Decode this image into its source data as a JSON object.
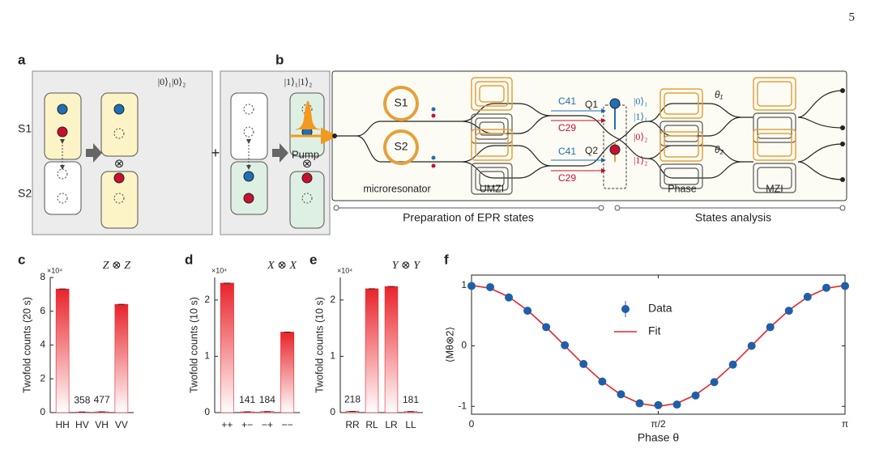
{
  "page_number": "5",
  "panel_a": {
    "label": "a",
    "kets": [
      "|0⟩₁|0⟩₂",
      "|1⟩₁|1⟩₂"
    ],
    "sources": [
      "S1",
      "S2"
    ],
    "plus": "+",
    "tensor": [
      "⊗",
      "⊗"
    ]
  },
  "panel_b": {
    "label": "b",
    "pump": "Pump",
    "sources": [
      "S1",
      "S2"
    ],
    "microresonator": "microresonator",
    "umzi": "UMZI",
    "modes": [
      "C41",
      "C29",
      "C41",
      "C29"
    ],
    "qubits": [
      "Q1",
      "Q2"
    ],
    "kets": [
      "|0⟩₁",
      "|1⟩₁",
      "|0⟩₂",
      "|1⟩₂"
    ],
    "thetas": [
      "θ₁",
      "θ₂"
    ],
    "phase": "Phase",
    "mzi": "MZI",
    "sections": [
      "Preparation of EPR states",
      "States analysis"
    ]
  },
  "chart_data": [
    {
      "label": "c",
      "type": "bar",
      "title": "Z ⊗ Z",
      "ylabel": "Twofold counts (20 s)",
      "y_multiplier": "×10⁴",
      "categories": [
        "HH",
        "HV",
        "VH",
        "VV"
      ],
      "values": [
        7.32,
        0.0358,
        0.0477,
        6.41
      ],
      "value_labels": [
        null,
        "358",
        "477",
        null
      ],
      "color": "#e8232a",
      "ylim": [
        0,
        8
      ],
      "yticks": [
        0,
        2,
        4,
        6,
        8
      ]
    },
    {
      "label": "d",
      "type": "bar",
      "title": "X ⊗ X",
      "ylabel": "Twofold counts (10 s)",
      "y_multiplier": "×10⁴",
      "categories": [
        "++",
        "+−",
        "−+",
        "−−"
      ],
      "values": [
        2.3,
        0.0141,
        0.0184,
        1.43
      ],
      "value_labels": [
        null,
        "141",
        "184",
        null
      ],
      "color": "#e8232a",
      "ylim": [
        0,
        2.4
      ],
      "yticks": [
        0,
        1,
        2
      ]
    },
    {
      "label": "e",
      "type": "bar",
      "title": "Y ⊗ Y",
      "ylabel": "Twofold counts (10 s)",
      "y_multiplier": "×10⁴",
      "categories": [
        "RR",
        "RL",
        "LR",
        "LL"
      ],
      "values": [
        0.0218,
        2.2,
        2.24,
        0.0181
      ],
      "value_labels": [
        "218",
        null,
        null,
        "181"
      ],
      "color": "#e8232a",
      "ylim": [
        0,
        2.4
      ],
      "yticks": [
        0,
        1,
        2
      ]
    },
    {
      "label": "f",
      "type": "line",
      "xlabel": "Phase θ",
      "ylabel": "⟨Mθ⊗2⟩",
      "x": [
        0,
        0.157,
        0.314,
        0.471,
        0.628,
        0.785,
        0.942,
        1.1,
        1.257,
        1.414,
        1.571,
        1.728,
        1.885,
        2.042,
        2.199,
        2.356,
        2.513,
        2.67,
        2.827,
        2.985,
        3.142
      ],
      "series": [
        {
          "name": "Data",
          "color": "#1f5fa8",
          "mode": "markers",
          "values": [
            0.99,
            0.97,
            0.8,
            0.58,
            0.31,
            0.01,
            -0.3,
            -0.59,
            -0.8,
            -0.95,
            -0.98,
            -0.97,
            -0.82,
            -0.6,
            -0.31,
            0.0,
            0.31,
            0.58,
            0.81,
            0.96,
            0.99
          ]
        },
        {
          "name": "Fit",
          "color": "#e8232a",
          "mode": "line",
          "values": [
            1,
            0.951,
            0.809,
            0.588,
            0.309,
            0,
            -0.309,
            -0.588,
            -0.809,
            -0.951,
            -1,
            -0.951,
            -0.809,
            -0.588,
            -0.309,
            0,
            0.309,
            0.588,
            0.809,
            0.951,
            1
          ]
        }
      ],
      "xlim": [
        0,
        3.142
      ],
      "ylim": [
        -1.13,
        1.17
      ],
      "xticks": [
        0,
        {
          "value": 1.571,
          "label": "π/2"
        },
        {
          "value": 3.142,
          "label": "π"
        }
      ],
      "yticks": [
        -1,
        0,
        1
      ]
    }
  ]
}
